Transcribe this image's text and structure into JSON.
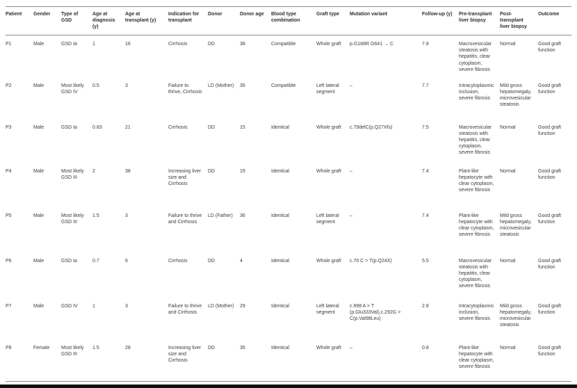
{
  "table": {
    "headers": [
      "Patient",
      "Gender",
      "Type of GSD",
      "Age at diagnosis (y)",
      "Age at transplant (y)",
      "Indication for transplant",
      "Donor",
      "Donor age",
      "Blood type combination",
      "Graft type",
      "Mutation variant",
      "Follow-up (y)",
      "Pre-transplant liver biopsy",
      "Post-transplant liver biopsy",
      "Outcome"
    ],
    "rows": [
      {
        "cells": [
          "P1",
          "Male",
          "GSD Ia",
          "1",
          "16",
          "Cirrhosis",
          "DD",
          "38",
          "Compatible",
          "Whole graft",
          "p.G188R G641 → C",
          "7.8",
          "Macrovesicular steatosis with hepatitis, clear cytoplasm, severe fibrosis",
          "Normal",
          "Good graft function"
        ]
      },
      {
        "cells": [
          "P2",
          "Male",
          "Most likely GSD IV",
          "0.5",
          "3",
          "Failure to thrive, Cirrhosis",
          "LD (Mother)",
          "35",
          "Compatible",
          "Left lateral segment",
          "–",
          "7.7",
          "Intracytoplasmic inclusion, severe fibrosis",
          "Mild gross hepatomegaly, microvesicular steatosis",
          "Good graft function"
        ]
      },
      {
        "cells": [
          "P3",
          "Male",
          "GSD Ia",
          "0.83",
          "21",
          "Cirrhosis",
          "DD",
          "15",
          "Identical",
          "Whole graft",
          "c.79delC(p.Q27Xfs)",
          "7.5",
          "Macrovesicular steatosis with hepatitis, clear cytoplasm, severe fibrosis",
          "Normal",
          "Good graft function"
        ]
      },
      {
        "cells": [
          "P4",
          "Male",
          "Most likely GSD III",
          "2",
          "38",
          "Increasing liver size and Cirrhosis",
          "DD",
          "19",
          "Identical",
          "Whole graft",
          "–",
          "7.4",
          "Plant-like hepatocyte with clear cytoplasm, severe fibrosis",
          "Normal",
          "Good graft function"
        ]
      },
      {
        "cells": [
          "P5",
          "Male",
          "Most likely GSD III",
          "1.5",
          "3",
          "Failure to thrive and Cirrhosis",
          "LD (Father)",
          "36",
          "Identical",
          "Left lateral segment",
          "–",
          "7.4",
          "Plant-like hepatocyte with clear cytoplasm, severe fibrosis",
          "Mild gross hepatomegaly, microvesicular steatosis",
          "Good graft function"
        ]
      },
      {
        "cells": [
          "P6",
          "Male",
          "GSD Ia",
          "0.7",
          "6",
          "Cirrhosis",
          "DD",
          "4",
          "Identical",
          "Whole graft",
          "c.70 C > T(p.Q24X)",
          "5.5",
          "Macrovesicular steatosis with hepatitis, clear cytoplasm, severe fibrosis",
          "Normal",
          "Good graft function"
        ]
      },
      {
        "cells": [
          "P7",
          "Male",
          "GSD IV",
          "1",
          "3",
          "Failure to thrive and Cirrhosis",
          "LD (Mother)",
          "29",
          "Identical",
          "Left lateral segment",
          "c.998 A > T (p.Glu333Val),c.292G > C(p.Val98Leu)",
          "2.8",
          "Intracytoplasmic inclusion, severe fibrosis",
          "Mild gross hepatomegaly, microvesicular steatosis",
          "Good graft function"
        ]
      },
      {
        "cells": [
          "P8",
          "Female",
          "Most likely GSD III",
          "1.5",
          "28",
          "Increasing liver size and Cirrhosis",
          "DD",
          "35",
          "Identical",
          "Whole graft",
          "–",
          "0.8",
          "Plant-like hepatocyte with clear cytoplasm, severe fibrosis",
          "Normal",
          "Good graft function"
        ]
      }
    ]
  }
}
